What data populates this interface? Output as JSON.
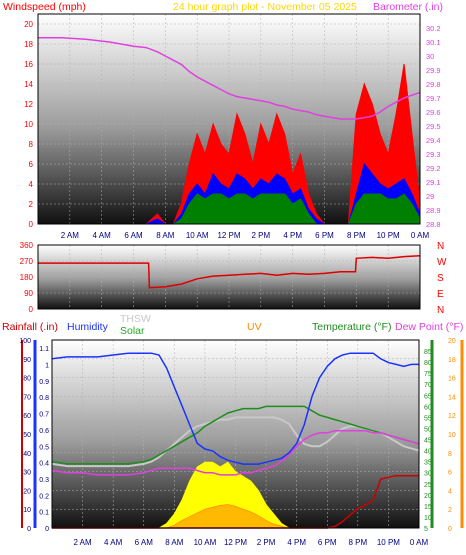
{
  "header": {
    "wind_title": "Windspeed (mph)",
    "center_title": "24 hour graph plot - November 05 2025",
    "baro_title": "Barometer (.in)"
  },
  "time_labels": [
    "2 AM",
    "4 AM",
    "6 AM",
    "8 AM",
    "10 AM",
    "12 PM",
    "2 PM",
    "4 PM",
    "6 PM",
    "8 PM",
    "10 PM",
    "0 AM"
  ],
  "colors": {
    "wind": "#ff0000",
    "gust": "#0000ff",
    "avg": "#008000",
    "baro": "#e040e0",
    "rain": "#cc0000",
    "humidity": "#1a33ff",
    "thsw": "#c8c8c8",
    "solar": "#ffff00",
    "uv": "#ff8c00",
    "temperature": "#1e8c1e",
    "dewpoint": "#e040e0"
  },
  "legend2": {
    "rainfall": "Rainfall (.in)",
    "humidity": "Humidity",
    "thsw": "THSW",
    "solar": "Solar",
    "uv": "UV",
    "temperature": "Temperature (°F)",
    "dewpoint": "Dew Point (°F)"
  },
  "chart_data": [
    {
      "type": "line",
      "title": "24 hour graph plot - November 05 2025",
      "ylabel": "Windspeed (mph)",
      "y2label": "Barometer (.in)",
      "ylim": [
        0,
        21
      ],
      "y2lim": [
        28.8,
        30.3
      ],
      "yticks": [
        "0",
        "2",
        "4",
        "6",
        "8",
        "10",
        "12",
        "14",
        "16",
        "18",
        "20"
      ],
      "y2ticks": [
        "28.8",
        "28.9",
        "29",
        "29.1",
        "29.2",
        "29.3",
        "29.4",
        "29.5",
        "29.6",
        "29.7",
        "29.8",
        "29.9",
        "30",
        "30.1",
        "30.2"
      ],
      "x_hours": [
        0.0,
        1.5,
        3.0,
        4.5,
        6.0,
        6.8,
        7.5,
        8.0,
        8.5,
        9.0,
        9.5,
        10.0,
        10.5,
        11.0,
        11.5,
        12.0,
        12.5,
        13.0,
        13.5,
        14.0,
        14.5,
        15.0,
        15.5,
        16.0,
        16.5,
        17.0,
        17.5,
        18.0,
        18.5,
        19.0,
        19.5,
        20.0,
        20.5,
        21.0,
        21.5,
        22.0,
        22.5,
        23.0,
        23.5,
        24.0
      ],
      "series": [
        {
          "name": "Windspeed",
          "values": [
            0,
            0,
            0,
            0,
            0,
            0,
            1,
            0,
            0,
            2,
            6,
            9,
            7,
            10,
            8,
            7,
            11,
            9,
            6,
            10,
            8,
            11,
            9,
            5,
            7,
            3,
            1,
            0,
            0,
            0,
            0,
            11,
            14,
            12,
            9,
            7,
            11,
            16,
            9,
            2
          ]
        },
        {
          "name": "Gust",
          "values": [
            0,
            0,
            0,
            0,
            0,
            0,
            0.5,
            0,
            0,
            1,
            3,
            4,
            3,
            5,
            4,
            3.5,
            5,
            4.5,
            3.5,
            4.5,
            4,
            5,
            4.5,
            3,
            3.5,
            1.5,
            0.5,
            0,
            0,
            0,
            0,
            3,
            6,
            5,
            4,
            3.5,
            4,
            4.5,
            3,
            1
          ]
        },
        {
          "name": "Average",
          "values": [
            0,
            0,
            0,
            0,
            0,
            0,
            0,
            0,
            0,
            0.5,
            2,
            3,
            2.5,
            3,
            3,
            2.5,
            3,
            3,
            2.5,
            3,
            3,
            3,
            3,
            2,
            2.5,
            1,
            0,
            0,
            0,
            0,
            0,
            2,
            3,
            3,
            3,
            2.5,
            2.5,
            3,
            2,
            0.5
          ]
        },
        {
          "name": "Barometer",
          "values": [
            30.13,
            30.13,
            30.12,
            30.1,
            30.07,
            30.06,
            30.03,
            30.0,
            29.97,
            29.94,
            29.89,
            29.85,
            29.82,
            29.79,
            29.76,
            29.73,
            29.71,
            29.7,
            29.69,
            29.68,
            29.67,
            29.65,
            29.64,
            29.62,
            29.61,
            29.6,
            29.58,
            29.57,
            29.56,
            29.55,
            29.55,
            29.55,
            29.56,
            29.57,
            29.6,
            29.64,
            29.67,
            29.7,
            29.72,
            29.74
          ]
        }
      ]
    },
    {
      "type": "line",
      "ylabel": "Wind direction",
      "ylim": [
        0,
        360
      ],
      "yticks": [
        "0",
        "90",
        "180",
        "270",
        "360"
      ],
      "compass": [
        "N",
        "W",
        "S",
        "E",
        "N"
      ],
      "x_hours": [
        0.0,
        6.95,
        7.0,
        8.0,
        9.0,
        10.0,
        11.0,
        12.0,
        13.0,
        14.0,
        15.0,
        16.0,
        17.0,
        18.0,
        19.0,
        19.95,
        20.0,
        21.0,
        22.0,
        23.0,
        24.0
      ],
      "series": [
        {
          "name": "Direction",
          "values": [
            258,
            258,
            120,
            125,
            140,
            170,
            185,
            190,
            195,
            200,
            190,
            200,
            195,
            200,
            210,
            210,
            285,
            290,
            285,
            295,
            300
          ]
        }
      ]
    },
    {
      "type": "line",
      "ylim_left_rain": [
        0,
        1.15
      ],
      "ylim_left_humidity": [
        0,
        100
      ],
      "ylim_right_temp": [
        5,
        90
      ],
      "ylim_right_uv": [
        0,
        20
      ],
      "rain_ticks": [
        "0",
        "0.1",
        "0.2",
        "0.3",
        "0.4",
        "0.5",
        "0.6",
        "0.7",
        "0.8",
        "0.9",
        "1",
        "1.1"
      ],
      "humidity_ticks": [
        "0",
        "10",
        "20",
        "30",
        "40",
        "50",
        "60",
        "70",
        "80",
        "90",
        "100"
      ],
      "temp_ticks": [
        "5",
        "10",
        "15",
        "20",
        "25",
        "30",
        "35",
        "40",
        "45",
        "50",
        "55",
        "60",
        "65",
        "70",
        "75",
        "80",
        "85"
      ],
      "uv_ticks": [
        "0",
        "2",
        "4",
        "6",
        "8",
        "10",
        "12",
        "14",
        "16",
        "18",
        "20"
      ],
      "x_hours": [
        0.0,
        1.0,
        2.0,
        3.0,
        4.0,
        5.0,
        6.0,
        6.5,
        7.0,
        7.5,
        8.0,
        8.5,
        9.0,
        9.5,
        10.0,
        10.5,
        11.0,
        11.5,
        12.0,
        12.5,
        13.0,
        13.5,
        14.0,
        14.5,
        15.0,
        15.5,
        16.0,
        16.5,
        17.0,
        17.5,
        18.0,
        18.5,
        19.0,
        19.5,
        20.0,
        20.5,
        21.0,
        21.5,
        22.0,
        22.5,
        23.0,
        23.5,
        24.0
      ],
      "series": [
        {
          "name": "Humidity",
          "values": [
            90,
            91,
            91,
            91,
            92,
            93,
            93,
            93,
            92,
            85,
            75,
            65,
            55,
            45,
            42,
            41,
            38,
            36,
            35,
            34,
            34,
            34,
            35,
            36,
            37,
            40,
            45,
            55,
            70,
            80,
            86,
            90,
            92,
            93,
            93,
            93,
            93,
            90,
            88,
            87,
            86,
            87,
            87
          ]
        },
        {
          "name": "Temperature",
          "values": [
            35,
            34,
            34,
            34,
            34,
            34,
            35,
            36,
            38,
            40,
            42,
            44,
            46,
            48,
            51,
            53,
            55,
            57,
            58,
            59,
            59,
            59,
            60,
            60,
            60,
            60,
            60,
            60,
            58,
            56,
            55,
            54,
            53,
            52,
            51,
            50,
            49,
            48,
            47,
            46,
            45,
            44,
            43
          ]
        },
        {
          "name": "THSW",
          "values": [
            34,
            33,
            33,
            33,
            33,
            33,
            34,
            35,
            37,
            40,
            43,
            46,
            49,
            51,
            52,
            53,
            54,
            54,
            55,
            55,
            55,
            55,
            55,
            55,
            54,
            52,
            47,
            43,
            42,
            42,
            44,
            47,
            50,
            51,
            51,
            50,
            49,
            48,
            46,
            44,
            42,
            41,
            40
          ]
        },
        {
          "name": "Dew Point",
          "values": [
            31,
            30,
            30,
            29,
            29,
            29,
            30,
            31,
            32,
            32,
            32,
            32,
            32,
            31,
            30,
            30,
            29,
            29,
            29,
            30,
            30,
            31,
            32,
            33,
            35,
            38,
            42,
            45,
            47,
            48,
            48,
            49,
            49,
            49,
            49,
            49,
            48,
            48,
            47,
            46,
            45,
            44,
            43
          ]
        },
        {
          "name": "Solar",
          "values": [
            0,
            0,
            0,
            0,
            0,
            0,
            0,
            0,
            0,
            0.5,
            1.5,
            3,
            5,
            6.5,
            7,
            7,
            6.5,
            7,
            6,
            5.5,
            5,
            4,
            2.5,
            1.5,
            0.5,
            0,
            0,
            0,
            0,
            0,
            0,
            0,
            0,
            0,
            0,
            0,
            0,
            0,
            0,
            0,
            0,
            0,
            0
          ]
        },
        {
          "name": "UV",
          "values": [
            0,
            0,
            0,
            0,
            0,
            0,
            0,
            0,
            0,
            0,
            0.3,
            0.8,
            1.2,
            1.6,
            2.0,
            2.2,
            2.4,
            2.5,
            2.3,
            2.0,
            1.7,
            1.3,
            0.8,
            0.4,
            0.2,
            0,
            0,
            0,
            0,
            0,
            0,
            0,
            0,
            0,
            0,
            0,
            0,
            0,
            0,
            0,
            0,
            0,
            0
          ]
        },
        {
          "name": "Rainfall",
          "values": [
            0,
            0,
            0,
            0,
            0,
            0,
            0,
            0,
            0,
            0,
            0,
            0,
            0,
            0,
            0,
            0,
            0,
            0,
            0,
            0,
            0,
            0,
            0,
            0,
            0,
            0,
            0,
            0,
            0,
            0,
            0,
            0.01,
            0.04,
            0.08,
            0.12,
            0.14,
            0.17,
            0.3,
            0.31,
            0.32,
            0.32,
            0.32,
            0.32
          ]
        }
      ]
    }
  ]
}
